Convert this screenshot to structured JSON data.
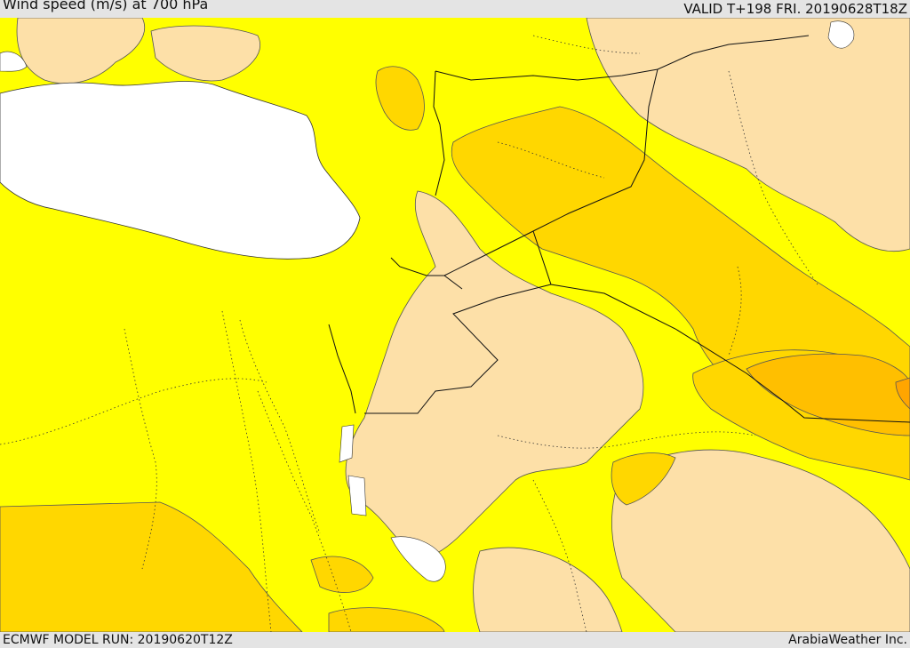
{
  "header": {
    "title": "Wind speed (m/s) at 700 hPa",
    "valid": "VALID T+198 FRI. 20190628T18Z"
  },
  "footer": {
    "model_run": "ECMWF MODEL RUN: 20190620T12Z",
    "credit": "ArabiaWeather Inc."
  },
  "colors": {
    "sea": "#ffffff",
    "band_light": "#fde0a8",
    "band_yellow": "#ffff00",
    "band_gold": "#ffd700",
    "band_orange": "#ffbf00",
    "band_dark_orange": "#ffa500",
    "contour_line": "#555555",
    "border_line": "#111111"
  }
}
